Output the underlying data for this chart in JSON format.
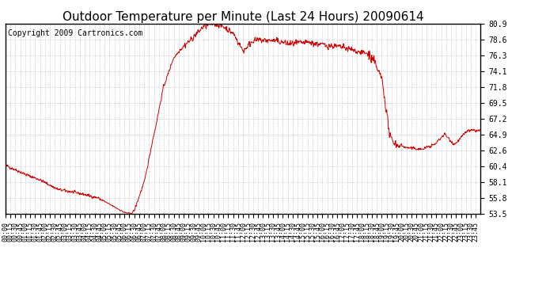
{
  "title": "Outdoor Temperature per Minute (Last 24 Hours) 20090614",
  "copyright_text": "Copyright 2009 Cartronics.com",
  "line_color": "#cc0000",
  "background_color": "#ffffff",
  "plot_bg_color": "#ffffff",
  "grid_color": "#999999",
  "border_color": "#000000",
  "yticks": [
    53.5,
    55.8,
    58.1,
    60.4,
    62.6,
    64.9,
    67.2,
    69.5,
    71.8,
    74.1,
    76.3,
    78.6,
    80.9
  ],
  "ymin": 53.5,
  "ymax": 80.9,
  "title_fontsize": 11,
  "tick_fontsize": 7,
  "copyright_fontsize": 7,
  "figwidth": 6.9,
  "figheight": 3.75,
  "dpi": 100
}
